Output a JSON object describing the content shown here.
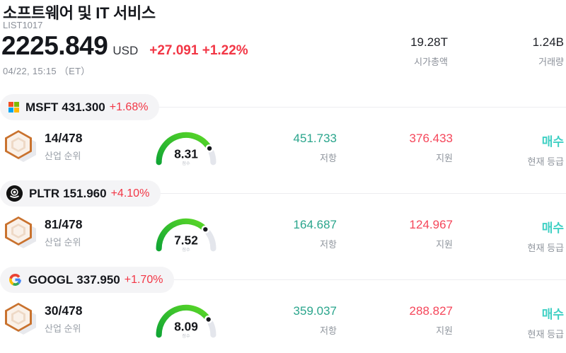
{
  "header": {
    "title": "소프트웨어 및 IT 서비스",
    "list_id": "LIST1017",
    "price": "2225.849",
    "currency": "USD",
    "change": "+27.091 +1.22%",
    "datetime": "04/22, 15:15 （ET）",
    "market_cap_value": "19.28T",
    "market_cap_label": "시가총액",
    "volume_value": "1.24B",
    "volume_label": "거래량"
  },
  "labels": {
    "rank": "산업 순위",
    "score": "점수",
    "resistance": "저항",
    "support": "지원",
    "rating": "현재 등급"
  },
  "colors": {
    "up_red": "#f23645",
    "resistance_teal": "#2aa58c",
    "support_red": "#f5465a",
    "rating_cyan": "#3fd0c4",
    "gauge_green_start": "#12a634",
    "gauge_green_end": "#5bd827",
    "gauge_track": "#e4e6ec",
    "gauge_knob": "#17191d"
  },
  "gauge_max": 10,
  "stocks": [
    {
      "ticker": "MSFT",
      "price": "431.300",
      "change": "+1.68%",
      "logo": "microsoft-logo",
      "rank": "14/478",
      "score": "8.31",
      "resistance": "451.733",
      "support": "376.433",
      "rating": "매수"
    },
    {
      "ticker": "PLTR",
      "price": "151.960",
      "change": "+4.10%",
      "logo": "palantir-logo",
      "rank": "81/478",
      "score": "7.52",
      "resistance": "164.687",
      "support": "124.967",
      "rating": "매수"
    },
    {
      "ticker": "GOOGL",
      "price": "337.950",
      "change": "+1.70%",
      "logo": "google-logo",
      "rank": "30/478",
      "score": "8.09",
      "resistance": "359.037",
      "support": "288.827",
      "rating": "매수"
    }
  ]
}
